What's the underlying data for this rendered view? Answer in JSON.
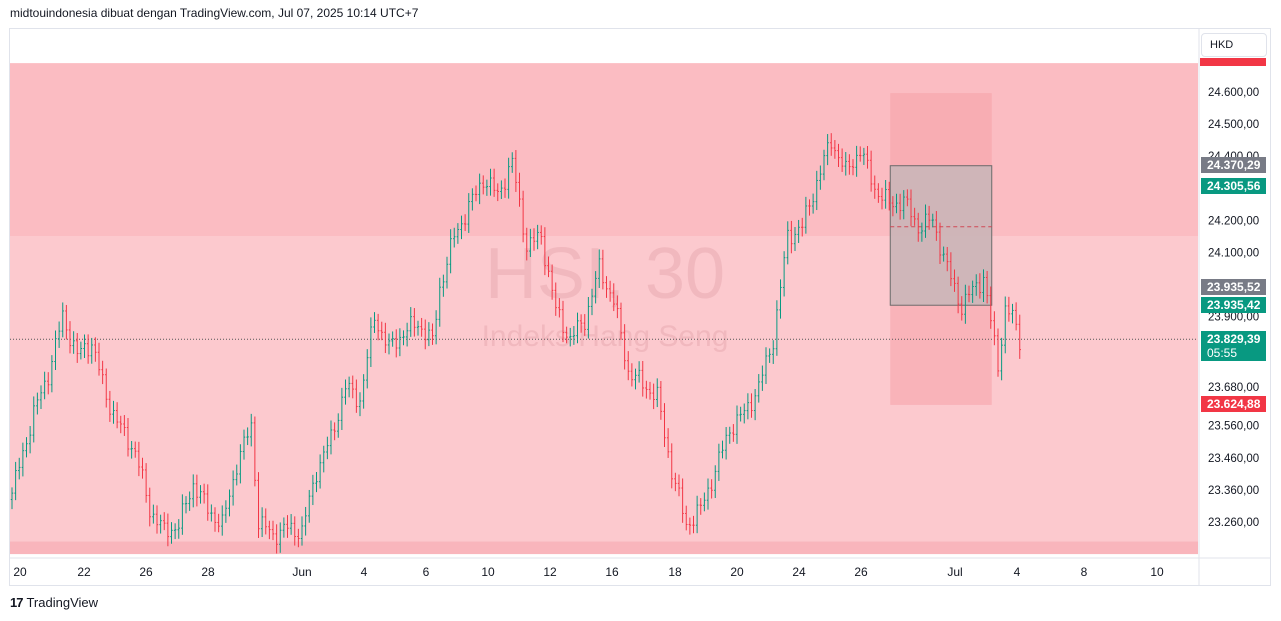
{
  "header": {
    "text": "midtouindonesia dibuat dengan TradingView.com, Jul 07, 2025 10:14 UTC+7"
  },
  "footer": {
    "brand": "TradingView",
    "logo_glyph": "17"
  },
  "currency": "HKD",
  "watermark": {
    "symbol": "HSI, 30",
    "name": "Indeks Hang Seng"
  },
  "colors": {
    "up": "#089981",
    "down": "#f23645",
    "zone_upper": "#fbbcc2",
    "zone_lower": "#fcc9ce",
    "zone_bottom": "#f9b5bc",
    "box_red": "#f6a0a8",
    "box_gray": "#c8b6b8"
  },
  "price_labels": [
    {
      "value": "24.370,29",
      "color": "#787b86"
    },
    {
      "value": "24.305,56",
      "color": "#089981"
    },
    {
      "value": "23.935,52",
      "color": "#787b86"
    },
    {
      "value": "23.935,42",
      "color": "#089981"
    },
    {
      "value": "23.829,39",
      "sub": "05:55",
      "color": "#089981"
    },
    {
      "value": "23.624,88",
      "color": "#f23645"
    }
  ],
  "chart_data": {
    "type": "candlestick",
    "symbol": "HSI",
    "interval": "30",
    "y_ticks": [
      "24.600,00",
      "24.500,00",
      "24.400,00",
      "24.200,00",
      "24.100,00",
      "23.900,00",
      "23.680,00",
      "23.560,00",
      "23.460,00",
      "23.360,00",
      "23.260,00"
    ],
    "y_tick_values": [
      24600,
      24500,
      24400,
      24200,
      24100,
      23900,
      23680,
      23560,
      23460,
      23360,
      23260
    ],
    "ylim": [
      23160,
      24690
    ],
    "x_ticks": [
      "20",
      "22",
      "26",
      "28",
      "Jun",
      "4",
      "6",
      "10",
      "12",
      "16",
      "18",
      "20",
      "24",
      "26",
      "Jul",
      "4",
      "8",
      "10"
    ],
    "current_price": 23829.39,
    "zones": [
      {
        "name": "upper",
        "from": 24150,
        "to": 24690
      },
      {
        "name": "lower",
        "from": 23200,
        "to": 24150
      },
      {
        "name": "bottom",
        "from": 23160,
        "to": 23200
      }
    ],
    "position_box": {
      "from_index": 242,
      "to_index": 270,
      "entry": 24370.29,
      "target_low": 23624.88,
      "stop": 24690,
      "mid": 23935.52
    },
    "candle_count": 290,
    "anchors": [
      [
        0,
        23350
      ],
      [
        6,
        23600
      ],
      [
        10,
        23720
      ],
      [
        14,
        23900
      ],
      [
        18,
        23780
      ],
      [
        22,
        23820
      ],
      [
        26,
        23650
      ],
      [
        30,
        23550
      ],
      [
        34,
        23480
      ],
      [
        38,
        23300
      ],
      [
        42,
        23230
      ],
      [
        46,
        23250
      ],
      [
        50,
        23380
      ],
      [
        54,
        23300
      ],
      [
        58,
        23250
      ],
      [
        62,
        23440
      ],
      [
        66,
        23560
      ],
      [
        68,
        23260
      ],
      [
        72,
        23220
      ],
      [
        76,
        23240
      ],
      [
        80,
        23230
      ],
      [
        84,
        23420
      ],
      [
        88,
        23520
      ],
      [
        92,
        23680
      ],
      [
        96,
        23640
      ],
      [
        100,
        23900
      ],
      [
        104,
        23800
      ],
      [
        108,
        23850
      ],
      [
        112,
        23880
      ],
      [
        116,
        23820
      ],
      [
        118,
        23990
      ],
      [
        122,
        24150
      ],
      [
        126,
        24240
      ],
      [
        130,
        24330
      ],
      [
        134,
        24280
      ],
      [
        138,
        24380
      ],
      [
        142,
        24120
      ],
      [
        146,
        24150
      ],
      [
        150,
        23920
      ],
      [
        154,
        23830
      ],
      [
        158,
        23890
      ],
      [
        162,
        24050
      ],
      [
        166,
        23950
      ],
      [
        170,
        23730
      ],
      [
        174,
        23690
      ],
      [
        178,
        23650
      ],
      [
        182,
        23420
      ],
      [
        186,
        23250
      ],
      [
        190,
        23300
      ],
      [
        194,
        23420
      ],
      [
        198,
        23550
      ],
      [
        202,
        23600
      ],
      [
        206,
        23680
      ],
      [
        210,
        23830
      ],
      [
        214,
        24150
      ],
      [
        218,
        24180
      ],
      [
        222,
        24320
      ],
      [
        226,
        24450
      ],
      [
        230,
        24350
      ],
      [
        234,
        24420
      ],
      [
        238,
        24300
      ],
      [
        242,
        24250
      ],
      [
        246,
        24260
      ],
      [
        250,
        24180
      ],
      [
        254,
        24200
      ],
      [
        258,
        24050
      ],
      [
        262,
        23930
      ],
      [
        266,
        24000
      ],
      [
        268,
        24020
      ],
      [
        272,
        23750
      ],
      [
        274,
        23920
      ],
      [
        276,
        23900
      ],
      [
        278,
        23830
      ]
    ]
  }
}
